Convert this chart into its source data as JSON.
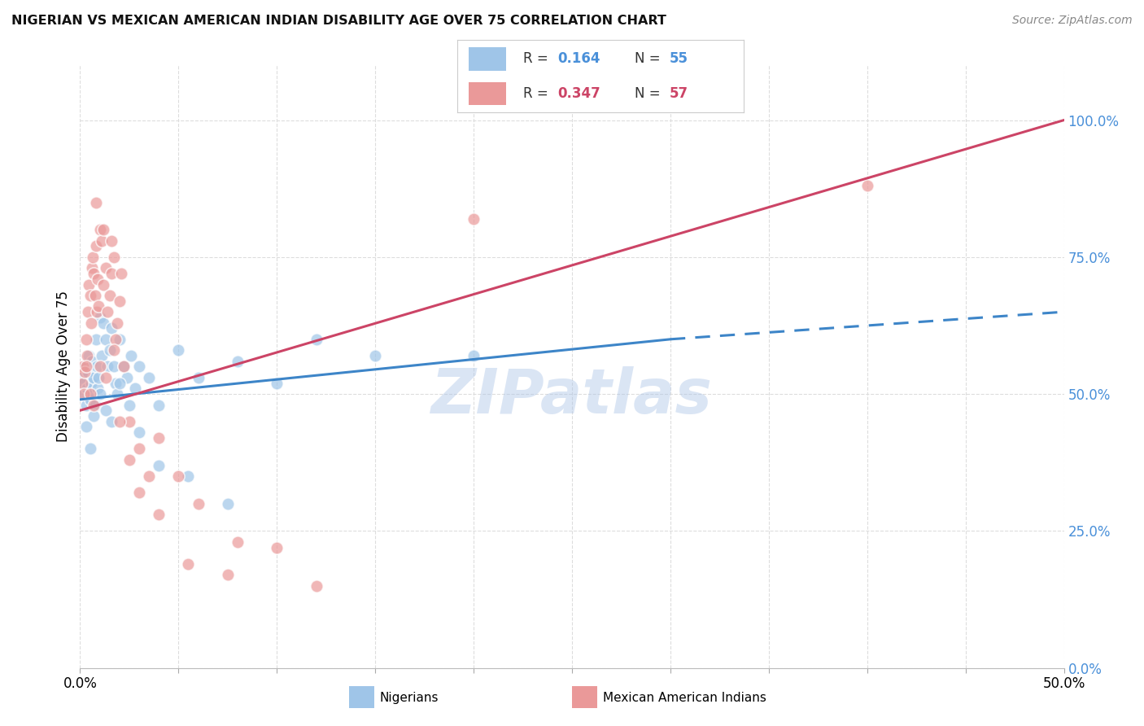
{
  "title": "NIGERIAN VS MEXICAN AMERICAN INDIAN DISABILITY AGE OVER 75 CORRELATION CHART",
  "source": "Source: ZipAtlas.com",
  "ylabel": "Disability Age Over 75",
  "ytick_vals": [
    0,
    25,
    50,
    75,
    100
  ],
  "xlim": [
    0,
    50
  ],
  "ylim": [
    0,
    110
  ],
  "nigerian_color": "#9fc5e8",
  "mexican_color": "#ea9999",
  "nigerian_line_color": "#3d85c8",
  "mexican_line_color": "#cc4466",
  "background_color": "#ffffff",
  "grid_color": "#dddddd",
  "watermark": "ZIPatlas",
  "nigerian_x": [
    0.1,
    0.15,
    0.2,
    0.25,
    0.3,
    0.35,
    0.4,
    0.45,
    0.5,
    0.55,
    0.6,
    0.65,
    0.7,
    0.75,
    0.8,
    0.85,
    0.9,
    0.95,
    1.0,
    1.1,
    1.2,
    1.3,
    1.4,
    1.5,
    1.6,
    1.7,
    1.8,
    1.9,
    2.0,
    2.2,
    2.4,
    2.6,
    2.8,
    3.0,
    3.5,
    4.0,
    5.0,
    6.0,
    8.0,
    10.0,
    12.0,
    15.0,
    0.3,
    0.5,
    0.7,
    1.0,
    1.3,
    1.6,
    2.0,
    2.5,
    3.0,
    4.0,
    5.5,
    7.5,
    20.0
  ],
  "nigerian_y": [
    53,
    50,
    52,
    55,
    48,
    51,
    54,
    57,
    49,
    52,
    56,
    50,
    53,
    48,
    60,
    55,
    51,
    53,
    64,
    57,
    63,
    60,
    55,
    58,
    62,
    55,
    52,
    50,
    60,
    55,
    53,
    57,
    51,
    55,
    53,
    48,
    58,
    53,
    56,
    52,
    60,
    57,
    44,
    40,
    46,
    50,
    47,
    45,
    52,
    48,
    43,
    37,
    35,
    30,
    57
  ],
  "mexican_x": [
    0.1,
    0.15,
    0.2,
    0.25,
    0.3,
    0.35,
    0.4,
    0.45,
    0.5,
    0.55,
    0.6,
    0.65,
    0.7,
    0.75,
    0.8,
    0.85,
    0.9,
    0.95,
    1.0,
    1.1,
    1.2,
    1.3,
    1.4,
    1.5,
    1.6,
    1.7,
    1.8,
    1.9,
    2.0,
    2.2,
    2.5,
    3.0,
    3.5,
    4.0,
    5.0,
    6.0,
    8.0,
    10.0,
    12.0,
    0.3,
    0.5,
    0.7,
    1.0,
    1.3,
    1.7,
    2.0,
    2.5,
    3.0,
    4.0,
    5.5,
    7.5,
    20.0,
    40.0,
    0.8,
    1.2,
    1.6,
    2.1
  ],
  "mexican_y": [
    52,
    55,
    50,
    54,
    60,
    57,
    65,
    70,
    68,
    63,
    73,
    75,
    72,
    68,
    77,
    65,
    71,
    66,
    80,
    78,
    70,
    73,
    65,
    68,
    72,
    75,
    60,
    63,
    67,
    55,
    45,
    40,
    35,
    42,
    35,
    30,
    23,
    22,
    15,
    55,
    50,
    48,
    55,
    53,
    58,
    45,
    38,
    32,
    28,
    19,
    17,
    82,
    88,
    85,
    80,
    78,
    72
  ],
  "nig_line_x0": 0,
  "nig_line_y0": 49,
  "nig_line_x1": 30,
  "nig_line_y1": 60,
  "nig_dash_x0": 30,
  "nig_dash_y0": 60,
  "nig_dash_x1": 50,
  "nig_dash_y1": 65,
  "mex_line_x0": 0,
  "mex_line_y0": 47,
  "mex_line_x1": 50,
  "mex_line_y1": 100
}
